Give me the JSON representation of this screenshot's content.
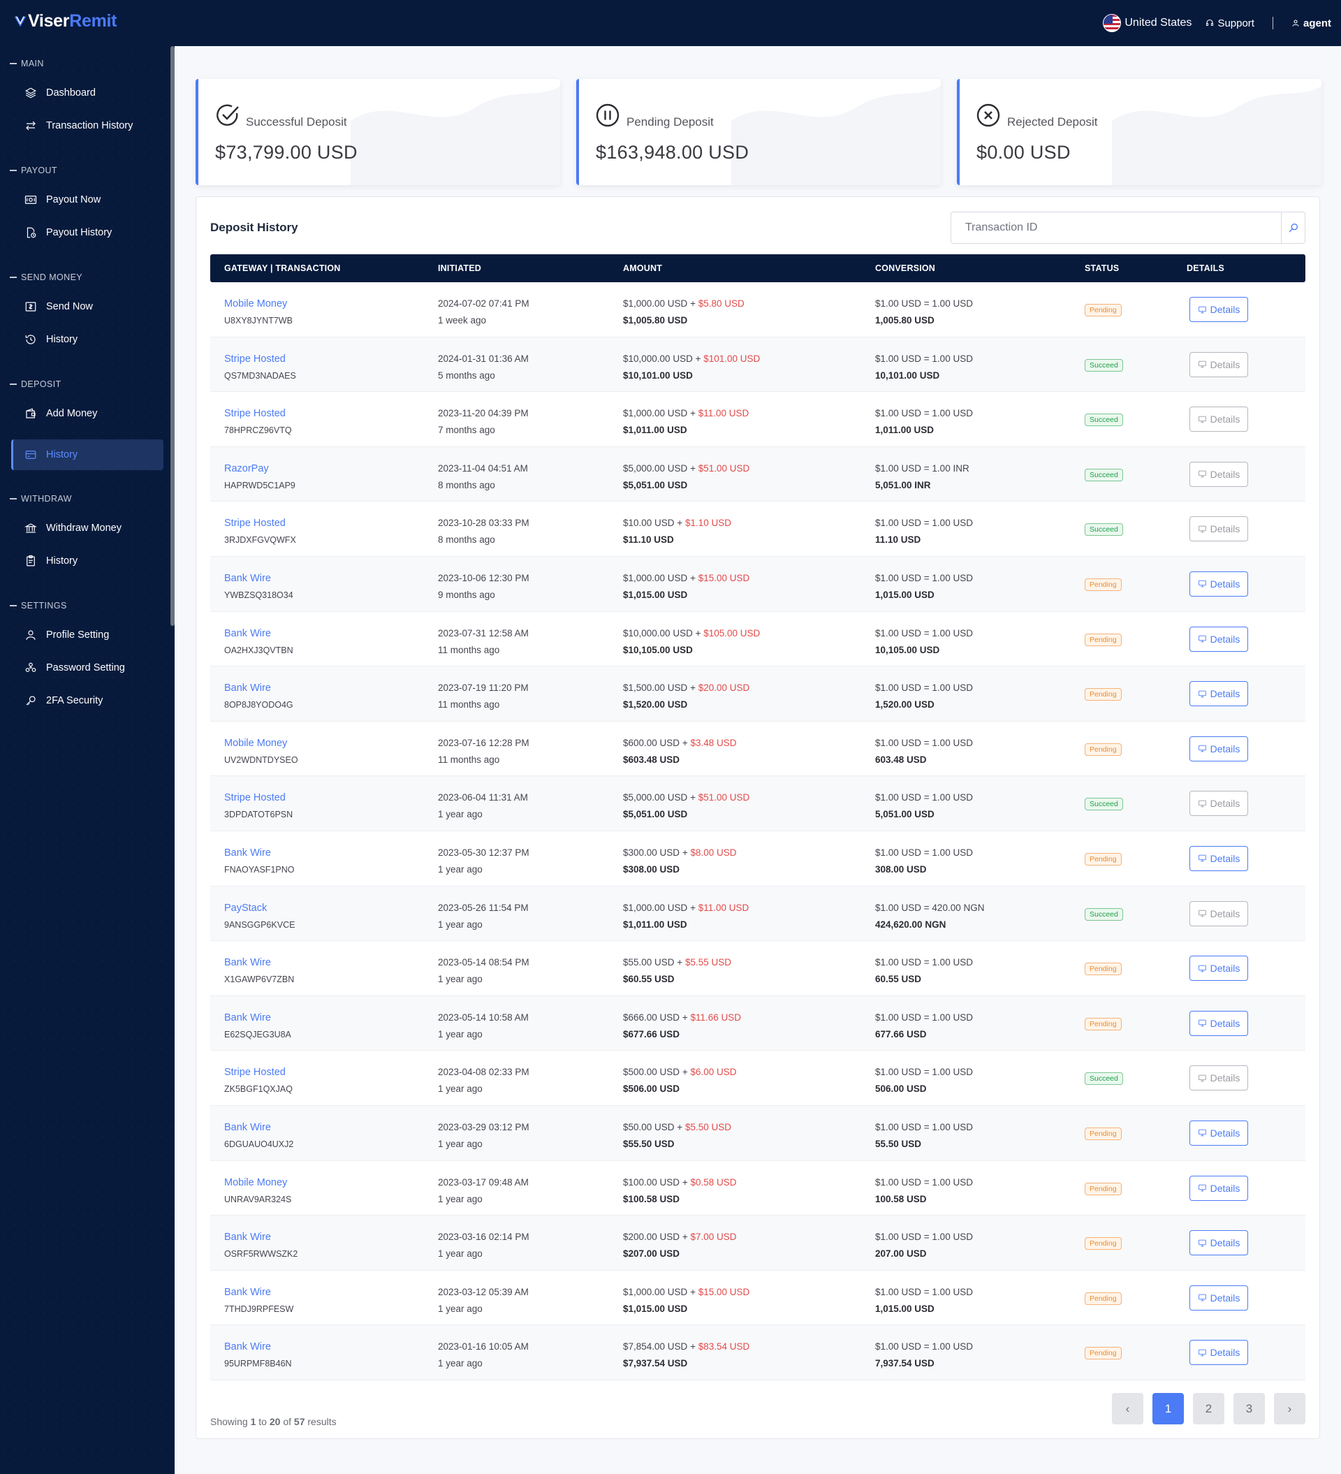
{
  "brand": {
    "part1": "Viser",
    "part2": "Remit"
  },
  "topbar": {
    "country": "United States",
    "support": "Support",
    "user": "agent"
  },
  "sidebar": [
    {
      "section": "MAIN",
      "items": [
        {
          "label": "Dashboard",
          "icon": "layers-icon"
        },
        {
          "label": "Transaction History",
          "icon": "exchange-icon"
        }
      ]
    },
    {
      "section": "PAYOUT",
      "items": [
        {
          "label": "Payout Now",
          "icon": "money-icon"
        },
        {
          "label": "Payout History",
          "icon": "document-clock-icon"
        }
      ]
    },
    {
      "section": "SEND MONEY",
      "items": [
        {
          "label": "Send Now",
          "icon": "send-money-icon"
        },
        {
          "label": "History",
          "icon": "history-icon"
        }
      ]
    },
    {
      "section": "DEPOSIT",
      "items": [
        {
          "label": "Add Money",
          "icon": "wallet-icon"
        },
        {
          "label": "History",
          "icon": "card-icon",
          "active": true
        }
      ]
    },
    {
      "section": "WITHDRAW",
      "items": [
        {
          "label": "Withdraw Money",
          "icon": "bank-icon"
        },
        {
          "label": "History",
          "icon": "clipboard-icon"
        }
      ]
    },
    {
      "section": "SETTINGS",
      "items": [
        {
          "label": "Profile Setting",
          "icon": "user-icon"
        },
        {
          "label": "Password Setting",
          "icon": "people-icon"
        },
        {
          "label": "2FA Security",
          "icon": "key-icon"
        }
      ]
    }
  ],
  "summary": [
    {
      "label": "Successful Deposit",
      "value": "$73,799.00 USD",
      "icon": "check-circle-icon"
    },
    {
      "label": "Pending Deposit",
      "value": "$163,948.00 USD",
      "icon": "pause-circle-icon"
    },
    {
      "label": "Rejected Deposit",
      "value": "$0.00 USD",
      "icon": "x-circle-icon"
    }
  ],
  "panel": {
    "title": "Deposit History",
    "search_placeholder": "Transaction ID"
  },
  "columns": [
    "GATEWAY | TRANSACTION",
    "INITIATED",
    "AMOUNT",
    "CONVERSION",
    "STATUS",
    "DETAILS"
  ],
  "details_label": "Details",
  "rows": [
    {
      "gateway": "Mobile Money",
      "trx": "U8XY8JYNT7WB",
      "date": "2024-07-02 07:41 PM",
      "ago": "1 week ago",
      "amount": "$1,000.00 USD",
      "charge": "$5.80 USD",
      "total": "$1,005.80 USD",
      "rate": "$1.00 USD = 1.00 USD",
      "final": "1,005.80 USD",
      "status": "Pending"
    },
    {
      "gateway": "Stripe Hosted",
      "trx": "QS7MD3NADAES",
      "date": "2024-01-31 01:36 AM",
      "ago": "5 months ago",
      "amount": "$10,000.00 USD",
      "charge": "$101.00 USD",
      "total": "$10,101.00 USD",
      "rate": "$1.00 USD = 1.00 USD",
      "final": "10,101.00 USD",
      "status": "Succeed"
    },
    {
      "gateway": "Stripe Hosted",
      "trx": "78HPRCZ96VTQ",
      "date": "2023-11-20 04:39 PM",
      "ago": "7 months ago",
      "amount": "$1,000.00 USD",
      "charge": "$11.00 USD",
      "total": "$1,011.00 USD",
      "rate": "$1.00 USD = 1.00 USD",
      "final": "1,011.00 USD",
      "status": "Succeed"
    },
    {
      "gateway": "RazorPay",
      "trx": "HAPRWD5C1AP9",
      "date": "2023-11-04 04:51 AM",
      "ago": "8 months ago",
      "amount": "$5,000.00 USD",
      "charge": "$51.00 USD",
      "total": "$5,051.00 USD",
      "rate": "$1.00 USD = 1.00 INR",
      "final": "5,051.00 INR",
      "status": "Succeed"
    },
    {
      "gateway": "Stripe Hosted",
      "trx": "3RJDXFGVQWFX",
      "date": "2023-10-28 03:33 PM",
      "ago": "8 months ago",
      "amount": "$10.00 USD",
      "charge": "$1.10 USD",
      "total": "$11.10 USD",
      "rate": "$1.00 USD = 1.00 USD",
      "final": "11.10 USD",
      "status": "Succeed"
    },
    {
      "gateway": "Bank Wire",
      "trx": "YWBZSQ318O34",
      "date": "2023-10-06 12:30 PM",
      "ago": "9 months ago",
      "amount": "$1,000.00 USD",
      "charge": "$15.00 USD",
      "total": "$1,015.00 USD",
      "rate": "$1.00 USD = 1.00 USD",
      "final": "1,015.00 USD",
      "status": "Pending"
    },
    {
      "gateway": "Bank Wire",
      "trx": "OA2HXJ3QVTBN",
      "date": "2023-07-31 12:58 AM",
      "ago": "11 months ago",
      "amount": "$10,000.00 USD",
      "charge": "$105.00 USD",
      "total": "$10,105.00 USD",
      "rate": "$1.00 USD = 1.00 USD",
      "final": "10,105.00 USD",
      "status": "Pending"
    },
    {
      "gateway": "Bank Wire",
      "trx": "8OP8J8YODO4G",
      "date": "2023-07-19 11:20 PM",
      "ago": "11 months ago",
      "amount": "$1,500.00 USD",
      "charge": "$20.00 USD",
      "total": "$1,520.00 USD",
      "rate": "$1.00 USD = 1.00 USD",
      "final": "1,520.00 USD",
      "status": "Pending"
    },
    {
      "gateway": "Mobile Money",
      "trx": "UV2WDNTDYSEO",
      "date": "2023-07-16 12:28 PM",
      "ago": "11 months ago",
      "amount": "$600.00 USD",
      "charge": "$3.48 USD",
      "total": "$603.48 USD",
      "rate": "$1.00 USD = 1.00 USD",
      "final": "603.48 USD",
      "status": "Pending"
    },
    {
      "gateway": "Stripe Hosted",
      "trx": "3DPDATOT6PSN",
      "date": "2023-06-04 11:31 AM",
      "ago": "1 year ago",
      "amount": "$5,000.00 USD",
      "charge": "$51.00 USD",
      "total": "$5,051.00 USD",
      "rate": "$1.00 USD = 1.00 USD",
      "final": "5,051.00 USD",
      "status": "Succeed"
    },
    {
      "gateway": "Bank Wire",
      "trx": "FNAOYASF1PNO",
      "date": "2023-05-30 12:37 PM",
      "ago": "1 year ago",
      "amount": "$300.00 USD",
      "charge": "$8.00 USD",
      "total": "$308.00 USD",
      "rate": "$1.00 USD = 1.00 USD",
      "final": "308.00 USD",
      "status": "Pending"
    },
    {
      "gateway": "PayStack",
      "trx": "9ANSGGP6KVCE",
      "date": "2023-05-26 11:54 PM",
      "ago": "1 year ago",
      "amount": "$1,000.00 USD",
      "charge": "$11.00 USD",
      "total": "$1,011.00 USD",
      "rate": "$1.00 USD = 420.00 NGN",
      "final": "424,620.00 NGN",
      "status": "Succeed"
    },
    {
      "gateway": "Bank Wire",
      "trx": "X1GAWP6V7ZBN",
      "date": "2023-05-14 08:54 PM",
      "ago": "1 year ago",
      "amount": "$55.00 USD",
      "charge": "$5.55 USD",
      "total": "$60.55 USD",
      "rate": "$1.00 USD = 1.00 USD",
      "final": "60.55 USD",
      "status": "Pending"
    },
    {
      "gateway": "Bank Wire",
      "trx": "E62SQJEG3U8A",
      "date": "2023-05-14 10:58 AM",
      "ago": "1 year ago",
      "amount": "$666.00 USD",
      "charge": "$11.66 USD",
      "total": "$677.66 USD",
      "rate": "$1.00 USD = 1.00 USD",
      "final": "677.66 USD",
      "status": "Pending"
    },
    {
      "gateway": "Stripe Hosted",
      "trx": "ZK5BGF1QXJAQ",
      "date": "2023-04-08 02:33 PM",
      "ago": "1 year ago",
      "amount": "$500.00 USD",
      "charge": "$6.00 USD",
      "total": "$506.00 USD",
      "rate": "$1.00 USD = 1.00 USD",
      "final": "506.00 USD",
      "status": "Succeed"
    },
    {
      "gateway": "Bank Wire",
      "trx": "6DGUAUO4UXJ2",
      "date": "2023-03-29 03:12 PM",
      "ago": "1 year ago",
      "amount": "$50.00 USD",
      "charge": "$5.50 USD",
      "total": "$55.50 USD",
      "rate": "$1.00 USD = 1.00 USD",
      "final": "55.50 USD",
      "status": "Pending"
    },
    {
      "gateway": "Mobile Money",
      "trx": "UNRAV9AR324S",
      "date": "2023-03-17 09:48 AM",
      "ago": "1 year ago",
      "amount": "$100.00 USD",
      "charge": "$0.58 USD",
      "total": "$100.58 USD",
      "rate": "$1.00 USD = 1.00 USD",
      "final": "100.58 USD",
      "status": "Pending"
    },
    {
      "gateway": "Bank Wire",
      "trx": "OSRF5RWWSZK2",
      "date": "2023-03-16 02:14 PM",
      "ago": "1 year ago",
      "amount": "$200.00 USD",
      "charge": "$7.00 USD",
      "total": "$207.00 USD",
      "rate": "$1.00 USD = 1.00 USD",
      "final": "207.00 USD",
      "status": "Pending"
    },
    {
      "gateway": "Bank Wire",
      "trx": "7THDJ9RPFESW",
      "date": "2023-03-12 05:39 AM",
      "ago": "1 year ago",
      "amount": "$1,000.00 USD",
      "charge": "$15.00 USD",
      "total": "$1,015.00 USD",
      "rate": "$1.00 USD = 1.00 USD",
      "final": "1,015.00 USD",
      "status": "Pending"
    },
    {
      "gateway": "Bank Wire",
      "trx": "95URPMF8B46N",
      "date": "2023-01-16 10:05 AM",
      "ago": "1 year ago",
      "amount": "$7,854.00 USD",
      "charge": "$83.54 USD",
      "total": "$7,937.54 USD",
      "rate": "$1.00 USD = 1.00 USD",
      "final": "7,937.54 USD",
      "status": "Pending"
    }
  ],
  "pagination": {
    "showing_prefix": "Showing",
    "from": "1",
    "to_word": "to",
    "to": "20",
    "of_word": "of",
    "total": "57",
    "suffix": "results",
    "prev": "‹",
    "pages": [
      "1",
      "2",
      "3"
    ],
    "current": "1",
    "next": "›"
  },
  "colors": {
    "navy": "#071a3c",
    "accent": "#4b7bf5",
    "charge_red": "#e24a4a",
    "pending": "#ef8b2c",
    "succeed": "#1f9f4a"
  }
}
